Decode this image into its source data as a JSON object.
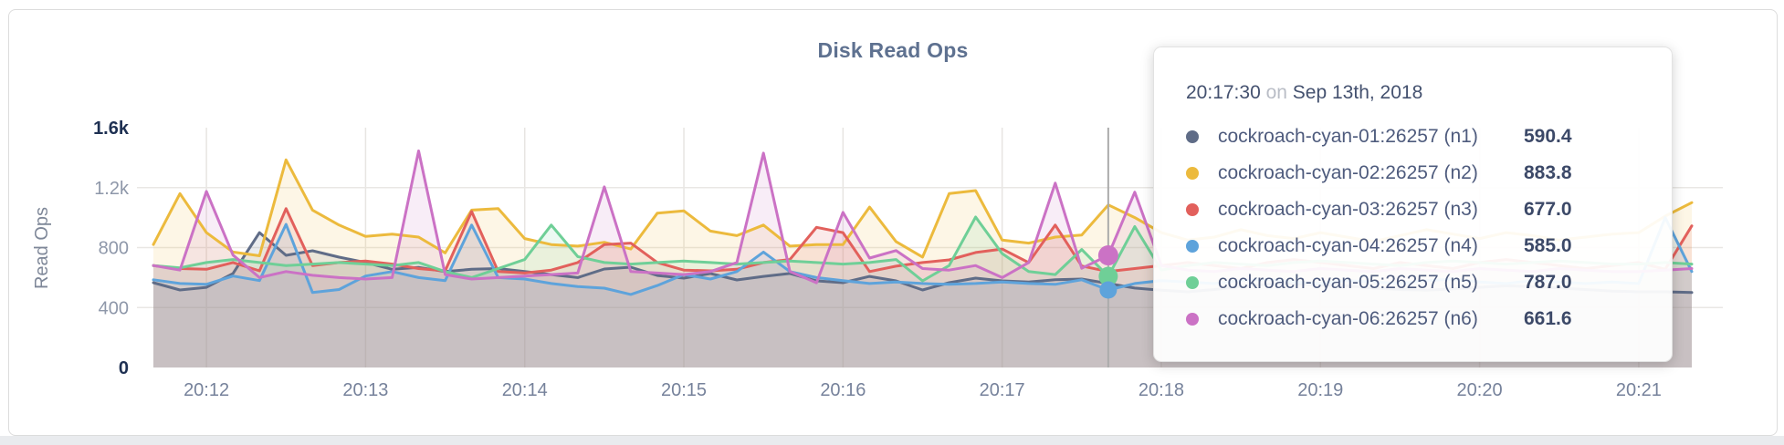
{
  "card": {
    "title": "Disk Read Ops"
  },
  "y_axis": {
    "title": "Read Ops"
  },
  "tooltip": {
    "time": "20:17:30",
    "on_word": "on",
    "date": "Sep 13th, 2018",
    "rows": [
      {
        "name": "cockroach-cyan-01:26257 (n1)",
        "value": "590.4"
      },
      {
        "name": "cockroach-cyan-02:26257 (n2)",
        "value": "883.8"
      },
      {
        "name": "cockroach-cyan-03:26257 (n3)",
        "value": "677.0"
      },
      {
        "name": "cockroach-cyan-04:26257 (n4)",
        "value": "585.0"
      },
      {
        "name": "cockroach-cyan-05:26257 (n5)",
        "value": "787.0"
      },
      {
        "name": "cockroach-cyan-06:26257 (n6)",
        "value": "661.6"
      }
    ]
  },
  "chart_data": {
    "type": "line",
    "title": "Disk Read Ops",
    "ylabel": "Read Ops",
    "ylim": [
      0,
      1600
    ],
    "grid": true,
    "start_time": "20:11:40",
    "point_interval_seconds": 10,
    "x_tick_labels": [
      "20:12",
      "20:13",
      "20:14",
      "20:15",
      "20:16",
      "20:17",
      "20:18",
      "20:19",
      "20:20",
      "20:21"
    ],
    "y_ticks": [
      {
        "label": "1.6k",
        "value": 1600,
        "emphasis": true,
        "grid": false
      },
      {
        "label": "1.2k",
        "value": 1200,
        "emphasis": false,
        "grid": true
      },
      {
        "label": "800",
        "value": 800,
        "emphasis": false,
        "grid": true
      },
      {
        "label": "400",
        "value": 400,
        "emphasis": false,
        "grid": true
      },
      {
        "label": "0",
        "value": 0,
        "emphasis": true,
        "grid": false
      }
    ],
    "series": [
      {
        "name": "cockroach-cyan-01:26257 (n1)",
        "color": "#5f6c87",
        "values": [
          566,
          517,
          535,
          627,
          900,
          748,
          779,
          736,
          700,
          655,
          668,
          640,
          655,
          660,
          640,
          620,
          600,
          657,
          669,
          614,
          596,
          627,
          584,
          608,
          627,
          578,
          566,
          608,
          578,
          517,
          566,
          596,
          578,
          570,
          585,
          590.4,
          560,
          530,
          515,
          505,
          520,
          540,
          555,
          560,
          550,
          545,
          530,
          520,
          515,
          525,
          535,
          545,
          540,
          530,
          520,
          510,
          505,
          505,
          500
        ]
      },
      {
        "name": "cockroach-cyan-02:26257 (n2)",
        "color": "#ecba3d",
        "values": [
          820,
          1160,
          900,
          770,
          745,
          1385,
          1050,
          950,
          875,
          890,
          870,
          765,
          1050,
          1060,
          860,
          820,
          810,
          835,
          790,
          1030,
          1045,
          910,
          880,
          950,
          810,
          820,
          820,
          1070,
          840,
          737,
          1160,
          1180,
          850,
          830,
          870,
          883.8,
          1085,
          1000,
          900,
          850,
          870,
          920,
          880,
          860,
          900,
          870,
          840,
          880,
          920,
          890,
          860,
          900,
          880,
          850,
          870,
          890,
          900,
          1010,
          1100
        ]
      },
      {
        "name": "cockroach-cyan-03:26257 (n3)",
        "color": "#e2605c",
        "values": [
          680,
          660,
          655,
          700,
          645,
          1060,
          680,
          700,
          710,
          690,
          660,
          645,
          1040,
          640,
          630,
          650,
          700,
          820,
          830,
          700,
          650,
          645,
          655,
          700,
          720,
          935,
          900,
          640,
          676,
          700,
          718,
          767,
          790,
          700,
          950,
          677,
          640,
          660,
          680,
          700,
          680,
          660,
          700,
          720,
          700,
          680,
          660,
          700,
          680,
          660,
          700,
          720,
          700,
          680,
          660,
          680,
          700,
          655,
          945
        ]
      },
      {
        "name": "cockroach-cyan-04:26257 (n4)",
        "color": "#5ea3db",
        "values": [
          585,
          560,
          555,
          610,
          580,
          955,
          500,
          520,
          610,
          640,
          600,
          580,
          950,
          600,
          590,
          560,
          540,
          529,
          487,
          547,
          620,
          590,
          640,
          770,
          640,
          600,
          580,
          560,
          570,
          560,
          555,
          560,
          570,
          560,
          555,
          585,
          517,
          560,
          580,
          570,
          560,
          580,
          590,
          570,
          560,
          580,
          570,
          560,
          580,
          590,
          570,
          560,
          580,
          570,
          560,
          570,
          560,
          1000,
          640
        ]
      },
      {
        "name": "cockroach-cyan-05:26257 (n5)",
        "color": "#6fcf97",
        "values": [
          680,
          665,
          700,
          720,
          700,
          680,
          690,
          700,
          690,
          680,
          700,
          640,
          600,
          660,
          720,
          950,
          740,
          700,
          690,
          700,
          710,
          700,
          690,
          700,
          710,
          700,
          690,
          700,
          720,
          578,
          680,
          1004,
          760,
          640,
          620,
          787,
          608,
          940,
          650,
          680,
          700,
          690,
          680,
          700,
          710,
          700,
          690,
          680,
          700,
          710,
          700,
          690,
          700,
          710,
          700,
          690,
          690,
          700,
          690
        ]
      },
      {
        "name": "cockroach-cyan-06:26257 (n6)",
        "color": "#cb72c5",
        "values": [
          680,
          650,
          1175,
          750,
          600,
          640,
          615,
          600,
          590,
          600,
          1445,
          620,
          590,
          600,
          610,
          620,
          630,
          1205,
          640,
          630,
          620,
          640,
          700,
          1430,
          640,
          565,
          1035,
          730,
          780,
          660,
          650,
          680,
          600,
          700,
          1230,
          661.6,
          748,
          1170,
          680,
          650,
          640,
          660,
          650,
          640,
          660,
          650,
          640,
          660,
          650,
          640,
          660,
          650,
          640,
          660,
          650,
          640,
          640,
          650,
          660
        ]
      }
    ],
    "hover": {
      "tooltip_time": "20:17:30",
      "crosshair_time": "20:17:40",
      "dots": [
        {
          "series": "cockroach-cyan-06:26257 (n6)",
          "value": 748
        },
        {
          "series": "cockroach-cyan-05:26257 (n5)",
          "value": 608
        },
        {
          "series": "cockroach-cyan-04:26257 (n4)",
          "value": 517
        }
      ]
    }
  }
}
